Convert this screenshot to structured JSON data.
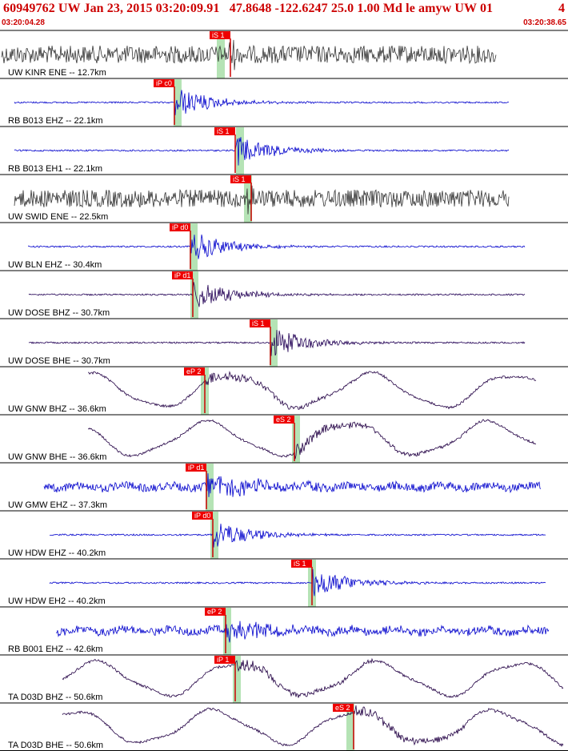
{
  "header": {
    "title": "60949762 UW Jan 23, 2015 03:20:09.91   47.8648 -122.6247 25.0 1.00 Md le amyw UW 01",
    "trailing": "4",
    "time_start": "03:20:04.28",
    "time_end": "03:20:38.65"
  },
  "colors": {
    "header_text": "#cc0000",
    "pick_box": "#ee0000",
    "window_band": "#b5e3b5"
  },
  "traces": [
    {
      "label": "UW KINR ENE -- 12.7km",
      "pick": "iS 1",
      "color": "#333333",
      "style": "noise"
    },
    {
      "label": "RB B013 EHZ -- 22.1km",
      "pick": "iP c0",
      "color": "#0000cc",
      "style": "event"
    },
    {
      "label": "RB B013 EH1 -- 22.1km",
      "pick": "iS 1",
      "color": "#0000cc",
      "style": "event"
    },
    {
      "label": "UW SWID ENE -- 22.5km",
      "pick": "iS 1",
      "color": "#333333",
      "style": "noise"
    },
    {
      "label": "UW BLN EHZ -- 30.4km",
      "pick": "iP d0",
      "color": "#0000cc",
      "style": "event"
    },
    {
      "label": "UW DOSE BHZ -- 30.7km",
      "pick": "iP d1",
      "color": "#220055",
      "style": "event"
    },
    {
      "label": "UW DOSE BHE -- 30.7km",
      "pick": "iS 1",
      "color": "#220055",
      "style": "event"
    },
    {
      "label": "UW GNW BHZ -- 36.6km",
      "pick": "eP 2",
      "color": "#220044",
      "style": "wave"
    },
    {
      "label": "UW GNW BHE -- 36.6km",
      "pick": "eS 2",
      "color": "#220044",
      "style": "wave"
    },
    {
      "label": "UW GMW EHZ -- 37.3km",
      "pick": "iP d1",
      "color": "#0000cc",
      "style": "busy"
    },
    {
      "label": "UW HDW EHZ -- 40.2km",
      "pick": "iP d0",
      "color": "#0000cc",
      "style": "event"
    },
    {
      "label": "UW HDW EH2 -- 40.2km",
      "pick": "iS 1",
      "color": "#0000cc",
      "style": "event"
    },
    {
      "label": "RB B001 EHZ -- 42.6km",
      "pick": "eP 2",
      "color": "#0000cc",
      "style": "busy"
    },
    {
      "label": "TA D03D BHZ -- 50.6km",
      "pick": "iP 1",
      "color": "#220044",
      "style": "wave"
    },
    {
      "label": "TA D03D BHE -- 50.6km",
      "pick": "eS 2",
      "color": "#220044",
      "style": "wave"
    }
  ]
}
